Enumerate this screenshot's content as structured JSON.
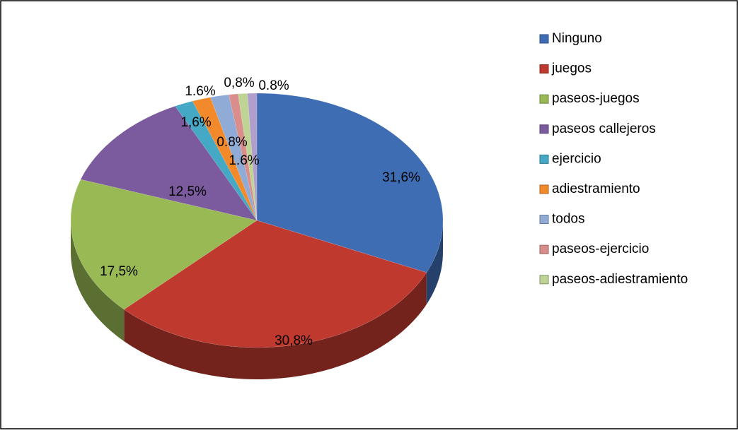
{
  "chart_data": {
    "type": "pie",
    "categories": [
      "Ninguno",
      "juegos",
      "paseos-juegos",
      "paseos callejeros",
      "ejercicio",
      "adiestramiento",
      "todos",
      "paseos-ejercicio",
      "paseos-adiestramiento",
      null
    ],
    "values": [
      31.6,
      30.8,
      17.5,
      12.5,
      1.6,
      1.6,
      1.6,
      0.8,
      0.8,
      0.8
    ],
    "value_labels": [
      "31,6%",
      "30,8%",
      "17,5%",
      "12,5%",
      "1,6%",
      "1.6%",
      "1.6%",
      "0.8%",
      "0,8%",
      "0.8%"
    ],
    "colors": [
      "#3e6db3",
      "#c0392f",
      "#98b954",
      "#7c5a9e",
      "#45a8c4",
      "#f28a2c",
      "#8fabd6",
      "#d98e8c",
      "#bfd494",
      "#b09fcc"
    ],
    "legend": "right"
  }
}
